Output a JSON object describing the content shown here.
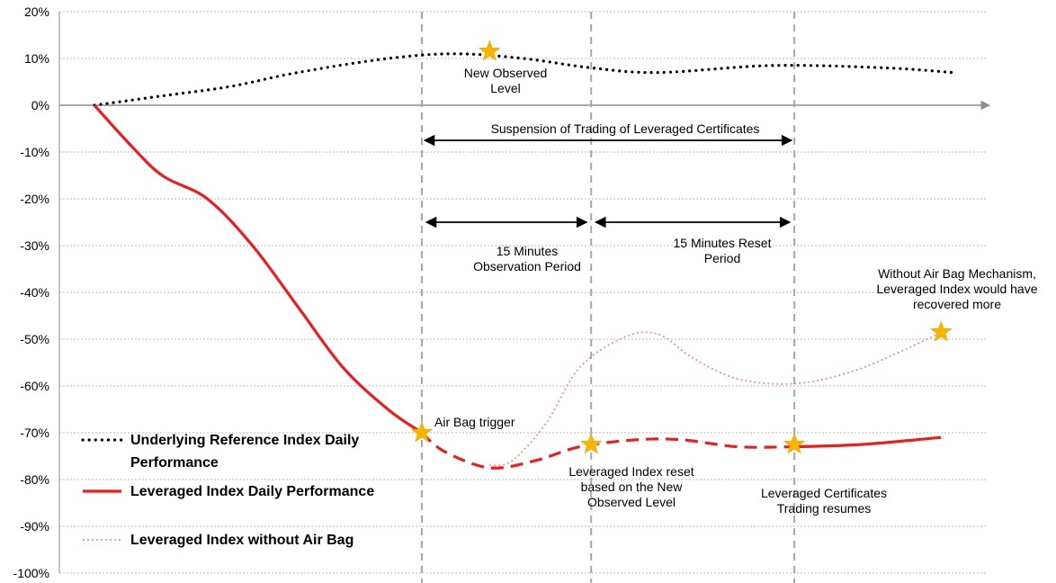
{
  "chart_data": {
    "type": "line",
    "title": "",
    "xlabel": "",
    "ylabel": "",
    "ylim": [
      -100,
      20
    ],
    "y_tick_labels": [
      "20%",
      "10%",
      "0%",
      "-10%",
      "-20%",
      "-30%",
      "-40%",
      "-50%",
      "-60%",
      "-70%",
      "-80%",
      "-90%",
      "-100%"
    ],
    "grid": "horizontal dotted",
    "legend_position": "bottom-left",
    "colors": {
      "underlying": "#000000",
      "leveraged": "#ee1c1c",
      "no_airbag": "#f0928c",
      "star": "#f7b500",
      "vline": "#a6a6a6"
    },
    "series": [
      {
        "name": "Underlying Reference Index Daily Performance",
        "style": "dotted",
        "points": [
          [
            0,
            0
          ],
          [
            6,
            2
          ],
          [
            12,
            4
          ],
          [
            18,
            7
          ],
          [
            26,
            10
          ],
          [
            32,
            11
          ],
          [
            38,
            10
          ],
          [
            44,
            8
          ],
          [
            50,
            7
          ],
          [
            60,
            8.5
          ],
          [
            70,
            8
          ],
          [
            76,
            7
          ]
        ]
      },
      {
        "name": "Leveraged Index Daily Performance",
        "style": "solid",
        "points": [
          [
            0,
            0
          ],
          [
            3,
            -8
          ],
          [
            6,
            -15
          ],
          [
            10,
            -20
          ],
          [
            14,
            -30
          ],
          [
            18,
            -43
          ],
          [
            22,
            -56
          ],
          [
            26,
            -65
          ],
          [
            29,
            -70
          ]
        ]
      },
      {
        "name": "Leveraged Index Daily Performance (reset, dashed)",
        "style": "dashed",
        "points": [
          [
            29,
            -70
          ],
          [
            31,
            -74
          ],
          [
            35,
            -77.5
          ],
          [
            39,
            -76
          ],
          [
            43,
            -73
          ],
          [
            48,
            -71.5
          ],
          [
            52,
            -71.5
          ],
          [
            57,
            -73
          ],
          [
            62,
            -73
          ]
        ]
      },
      {
        "name": "Leveraged Index Daily Performance (after resume)",
        "style": "solid",
        "points": [
          [
            62,
            -73
          ],
          [
            68,
            -72.5
          ],
          [
            75,
            -71
          ]
        ]
      },
      {
        "name": "Leveraged Index without Air Bag",
        "style": "light-dotted",
        "points": [
          [
            35,
            -77
          ],
          [
            37,
            -76
          ],
          [
            40,
            -68
          ],
          [
            43,
            -56
          ],
          [
            47,
            -49.5
          ],
          [
            50,
            -49
          ],
          [
            53,
            -54
          ],
          [
            57,
            -58.5
          ],
          [
            62,
            -59.5
          ],
          [
            67,
            -57
          ],
          [
            72,
            -52
          ],
          [
            75,
            -48.5
          ]
        ]
      }
    ],
    "vertical_lines": [
      29,
      44,
      62
    ],
    "stars": [
      {
        "x": 35,
        "y": 11.5
      },
      {
        "x": 29,
        "y": -70
      },
      {
        "x": 44,
        "y": -72.5
      },
      {
        "x": 62,
        "y": -72.5
      },
      {
        "x": 75,
        "y": -48.5
      }
    ],
    "arrows": [
      {
        "label": "Suspension of  Trading of Leveraged Certificates",
        "from": 29,
        "to": 62,
        "y": -7.5
      },
      {
        "label": "15 Minutes Observation Period",
        "from": 29,
        "to": 44,
        "y": -25
      },
      {
        "label": "15  Minutes  Reset Period",
        "from": 44,
        "to": 62,
        "y": -25
      }
    ],
    "annotations": [
      {
        "id": "new_observed",
        "lines": [
          "New Observed",
          "Level"
        ]
      },
      {
        "id": "suspension",
        "lines": [
          "Suspension of  Trading of Leveraged Certificates"
        ]
      },
      {
        "id": "observation",
        "lines": [
          "15 Minutes",
          "Observation Period"
        ]
      },
      {
        "id": "reset_period",
        "lines": [
          "15  Minutes  Reset",
          "Period"
        ]
      },
      {
        "id": "without_airbag",
        "lines": [
          "Without Air Bag Mechanism,",
          "Leveraged Index would have",
          "recovered more"
        ]
      },
      {
        "id": "airbag_trigger",
        "lines": [
          "Air Bag trigger"
        ]
      },
      {
        "id": "index_reset",
        "lines": [
          "Leveraged Index reset",
          "based on the New",
          "Observed Level"
        ]
      },
      {
        "id": "trading_resumes",
        "lines": [
          "Leveraged Certificates",
          "Trading resumes"
        ]
      }
    ],
    "legend": [
      {
        "label": "Underlying Reference Index Daily",
        "label2": "Performance",
        "style": "dotted"
      },
      {
        "label": "Leveraged Index Daily Performance",
        "style": "solid"
      },
      {
        "label": "Leveraged Index without Air Bag",
        "style": "light-dotted"
      }
    ]
  }
}
